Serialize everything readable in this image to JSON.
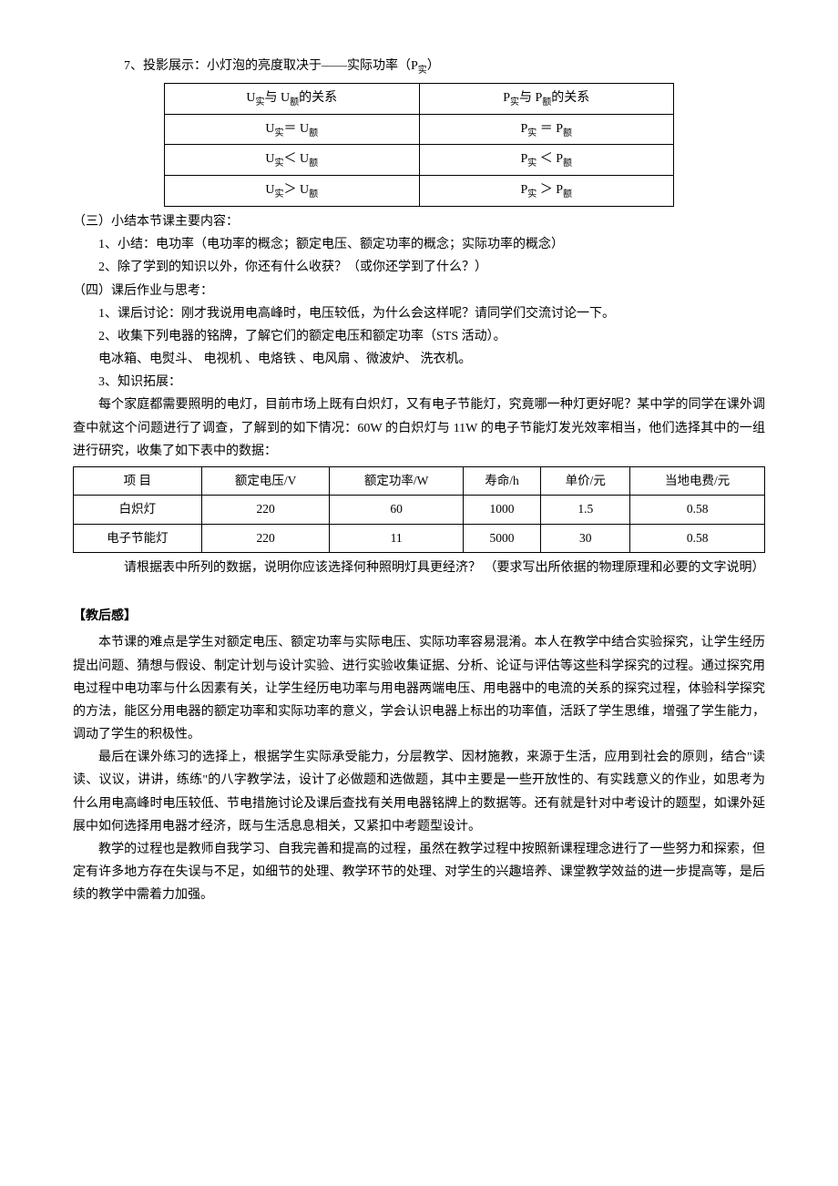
{
  "line_7": "7、投影展示：小灯泡的亮度取决于——实际功率（P",
  "line_7_sub": "实",
  "line_7_end": "）",
  "table1": {
    "header": {
      "col1_pre": "U",
      "col1_sub1": "实",
      "col1_mid": "与 U",
      "col1_sub2": "额",
      "col1_post": "的关系",
      "col2_pre": "P",
      "col2_sub1": "实",
      "col2_mid": "与 P",
      "col2_sub2": "额",
      "col2_post": "的关系"
    },
    "rows": [
      {
        "u1": "U",
        "u1s": "实",
        "op": "＝",
        "u2": "  U",
        "u2s": "额",
        "p1": "P",
        "p1s": "实",
        "pop": " ＝ ",
        "p2": "P",
        "p2s": "额"
      },
      {
        "u1": "U",
        "u1s": "实",
        "op": "＜",
        "u2": "  U",
        "u2s": "额",
        "p1": "P",
        "p1s": "实",
        "pop": " ＜ ",
        "p2": "P",
        "p2s": "额"
      },
      {
        "u1": "U",
        "u1s": "实",
        "op": "＞",
        "u2": " U",
        "u2s": "额",
        "p1": "P",
        "p1s": "实",
        "pop": " ＞ ",
        "p2": "P",
        "p2s": "额"
      }
    ]
  },
  "sec3_title": "（三）小结本节课主要内容：",
  "sec3_1": "1、小结：电功率（电功率的概念；额定电压、额定功率的概念；实际功率的概念）",
  "sec3_2": "2、除了学到的知识以外，你还有什么收获？（或你还学到了什么？）",
  "sec4_title": "（四）课后作业与思考：",
  "sec4_1": "1、课后讨论：刚才我说用电高峰时，电压较低，为什么会这样呢？请同学们交流讨论一下。",
  "sec4_2": "2、收集下列电器的铭牌，了解它们的额定电压和额定功率（STS 活动）。",
  "sec4_2b": "电冰箱、电熨斗、 电视机 、电烙铁 、电风扇 、微波炉、 洗衣机。",
  "sec4_3": "3、知识拓展：",
  "sec4_3a": "每个家庭都需要照明的电灯，目前市场上既有白炽灯，又有电子节能灯，究竟哪一种灯更好呢？某中学的同学在课外调查中就这个问题进行了调查，了解到的如下情况：60W 的白炽灯与 11W 的电子节能灯发光效率相当，他们选择其中的一组进行研究，收集了如下表中的数据：",
  "table2": {
    "headers": [
      "项  目",
      "额定电压/V",
      "额定功率/W",
      "寿命/h",
      "单价/元",
      "当地电费/元"
    ],
    "rows": [
      [
        "白炽灯",
        "220",
        "60",
        "1000",
        "1.5",
        "0.58"
      ],
      [
        "电子节能灯",
        "220",
        "11",
        "5000",
        "30",
        "0.58"
      ]
    ]
  },
  "sec4_3b": "请根据表中所列的数据，说明你应该选择何种照明灯具更经济？ （要求写出所依据的物理原理和必要的文字说明）",
  "reflection_title": "【教后感】",
  "reflection_p1": "本节课的难点是学生对额定电压、额定功率与实际电压、实际功率容易混淆。本人在教学中结合实验探究，让学生经历提出问题、猜想与假设、制定计划与设计实验、进行实验收集证据、分析、论证与评估等这些科学探究的过程。通过探究用电过程中电功率与什么因素有关，让学生经历电功率与用电器两端电压、用电器中的电流的关系的探究过程，体验科学探究的方法，能区分用电器的额定功率和实际功率的意义，学会认识电器上标出的功率值，活跃了学生思维，增强了学生能力，调动了学生的积极性。",
  "reflection_p2": "最后在课外练习的选择上，根据学生实际承受能力，分层教学、因材施教，来源于生活，应用到社会的原则，结合\"读读、议议，讲讲，练练\"的八字教学法，设计了必做题和选做题，其中主要是一些开放性的、有实践意义的作业，如思考为什么用电高峰时电压较低、节电措施讨论及课后查找有关用电器铭牌上的数据等。还有就是针对中考设计的题型，如课外延展中如何选择用电器才经济，既与生活息息相关，又紧扣中考题型设计。",
  "reflection_p3": "教学的过程也是教师自我学习、自我完善和提高的过程，虽然在教学过程中按照新课程理念进行了一些努力和探索，但定有许多地方存在失误与不足，如细节的处理、教学环节的处理、对学生的兴趣培养、课堂教学效益的进一步提高等，是后续的教学中需着力加强。"
}
